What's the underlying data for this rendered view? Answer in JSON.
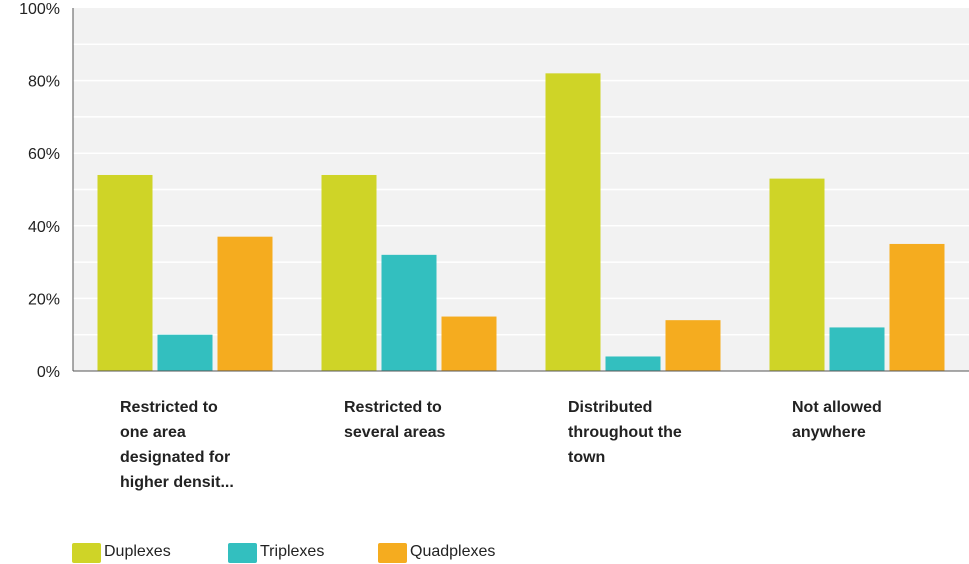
{
  "chart_data": {
    "type": "bar",
    "categories": [
      [
        "Restricted to",
        "one area",
        "designated for",
        "higher densit..."
      ],
      [
        "Restricted to",
        "several areas"
      ],
      [
        "Distributed",
        "throughout the",
        "town"
      ],
      [
        "Not allowed",
        "anywhere"
      ]
    ],
    "series": [
      {
        "name": "Duplexes",
        "color": "#cfd427",
        "values": [
          54,
          54,
          82,
          53
        ]
      },
      {
        "name": "Triplexes",
        "color": "#33bfbf",
        "values": [
          10,
          32,
          4,
          12
        ]
      },
      {
        "name": "Quadplexes",
        "color": "#f5ac1f",
        "values": [
          37,
          15,
          14,
          35
        ]
      }
    ],
    "ylim": [
      0,
      100
    ],
    "yticks": [
      "0%",
      "20%",
      "40%",
      "60%",
      "80%",
      "100%"
    ],
    "grid": true,
    "legend": "bottom-left",
    "colors": {
      "plot_background": "#f2f2f2",
      "gridline": "#ffffff",
      "axis": "#555555"
    }
  }
}
